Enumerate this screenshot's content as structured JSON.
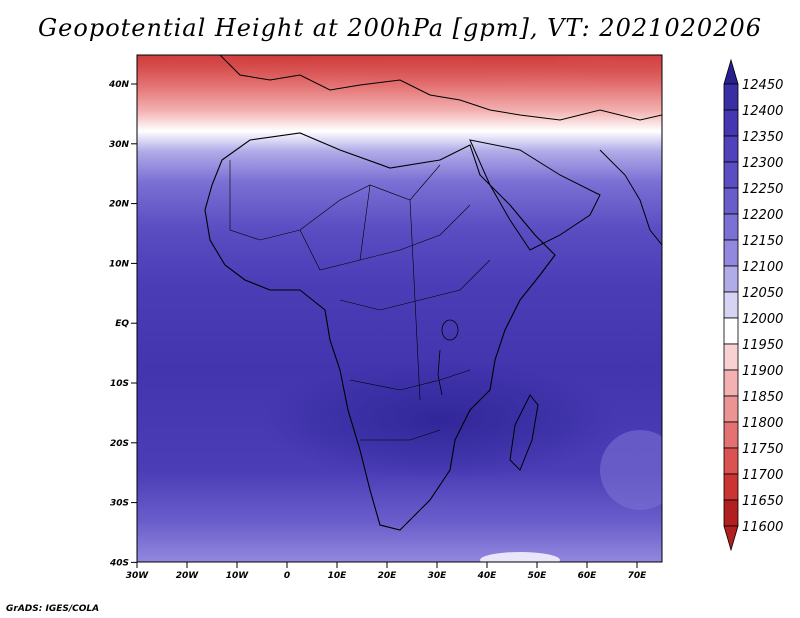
{
  "title": "Geopotential Height at 200hPa [gpm], VT: 2021020206",
  "credit": "GrADS: IGES/COLA",
  "lat_labels": [
    "40N",
    "30N",
    "20N",
    "10N",
    "EQ",
    "10S",
    "20S",
    "30S",
    "40S"
  ],
  "lon_labels": [
    "30W",
    "20W",
    "10W",
    "0",
    "10E",
    "20E",
    "30E",
    "40E",
    "50E",
    "60E",
    "70E"
  ],
  "colorbar": {
    "levels": [
      "12450",
      "12400",
      "12350",
      "12300",
      "12250",
      "12200",
      "12150",
      "12100",
      "12050",
      "12000",
      "11950",
      "11900",
      "11850",
      "11800",
      "11750",
      "11700",
      "11650",
      "11600"
    ],
    "colors": [
      "#2a1f8e",
      "#3a2ea4",
      "#4537b2",
      "#5042bb",
      "#5b4ec3",
      "#6a5dcb",
      "#7b70d4",
      "#9288dd",
      "#b1abe8",
      "#d6d3f3",
      "#ffffff",
      "#f8d2d2",
      "#f3b1b1",
      "#ec9393",
      "#e47272",
      "#da5252",
      "#cc3434",
      "#b21f1f"
    ]
  },
  "colors": {
    "ocean_deep": "#3f33a8",
    "ocean_mid": "#5346bc",
    "coast": "#000000"
  }
}
